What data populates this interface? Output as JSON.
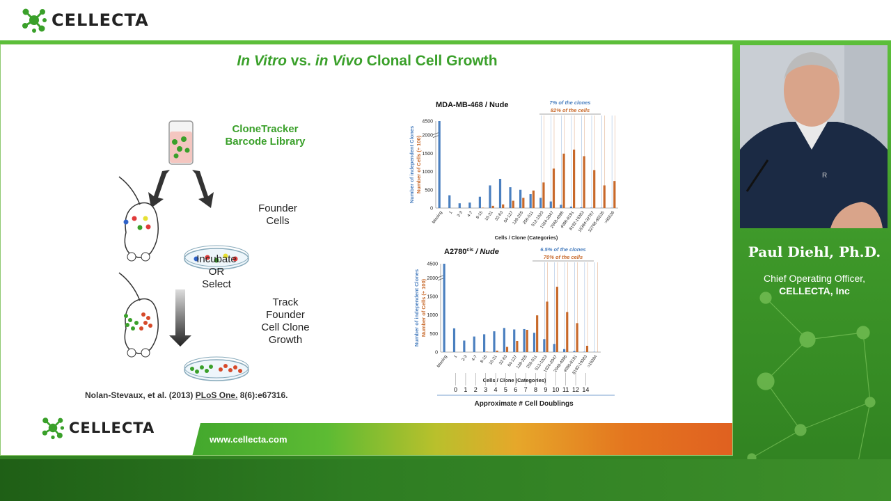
{
  "brand": {
    "name": "CELLECTA",
    "green": "#3aa02a",
    "orange": "#c8692a",
    "blue": "#4a7fbf"
  },
  "slide": {
    "title_italic_1": "In Vitro",
    "title_mid": " vs. ",
    "title_italic_2": "in Vivo",
    "title_rest": " Clonal Cell Growth",
    "library_label_line1": "CloneTracker",
    "library_label_line2": "Barcode Library",
    "founder_line1": "Founder",
    "founder_line2": "Cells",
    "incubate_line1": "Incubate",
    "incubate_line2": "OR",
    "incubate_line3": "Select",
    "track_line1": "Track",
    "track_line2": "Founder",
    "track_line3": "Cell Clone",
    "track_line4": "Growth",
    "citation_pre": "Nolan-Stevaux, et al. (2013) ",
    "citation_journal": "PLoS One.",
    "citation_post": " 8(6):e67316.",
    "footer_url": "www.cellecta.com",
    "footer_logo": "CELLECTA"
  },
  "speaker": {
    "name": "Paul Diehl, Ph.D.",
    "role": "Chief Operating Officer,",
    "company": "CELLECTA, Inc"
  },
  "chart_data": [
    {
      "type": "bar",
      "title": "MDA-MB-468 / Nude",
      "annotation_1": "7% of the clones",
      "annotation_2": "82% of the cells",
      "ylabel_1": "Number of independent Clones",
      "ylabel_2": "Number of Cells (÷ 100)",
      "xlabel": "Cells / Clone (Categories)",
      "yticks": [
        "0",
        "500",
        "1000",
        "1500",
        "2000",
        "4500"
      ],
      "categories": [
        "Missing",
        "1",
        "2-3",
        "4-7",
        "8-15",
        "16-31",
        "32-63",
        "64-127",
        "128-255",
        "256-511",
        "512-1023",
        "1024-2047",
        "2048-4095",
        "4096-8191",
        "8192-16383",
        "16384-32767",
        "32768-65535",
        ">65536"
      ],
      "series": [
        {
          "name": "Number of independent Clones",
          "values": [
            4600,
            350,
            130,
            150,
            310,
            620,
            800,
            570,
            500,
            380,
            280,
            180,
            90,
            40,
            20,
            10,
            5,
            5
          ]
        },
        {
          "name": "Number of Cells (÷ 100)",
          "values": [
            0,
            0,
            0,
            0,
            10,
            60,
            100,
            200,
            280,
            480,
            700,
            1080,
            1490,
            1600,
            1420,
            1040,
            620,
            740
          ]
        }
      ]
    },
    {
      "type": "bar",
      "title": "A2780",
      "title_sup": "cis",
      "title_suffix": " / Nude",
      "annotation_1": "6.5% of the clones",
      "annotation_2": "70% of the cells",
      "ylabel_1": "Number of independent Clones",
      "ylabel_2": "Number of Cells (÷ 100)",
      "xlabel": "Cells / Clone (Categories)",
      "yticks": [
        "0",
        "500",
        "1000",
        "1500",
        "2000",
        "4500"
      ],
      "categories": [
        "Missing",
        "1",
        "2-3",
        "4-7",
        "8-15",
        "16-31",
        "32-63",
        "64-127",
        "128-255",
        "256-511",
        "512-1023",
        "1024-2047",
        "2048-4095",
        "4096-8191",
        "8192-16383",
        ">16384"
      ],
      "series": [
        {
          "name": "Number of independent Clones",
          "values": [
            4600,
            640,
            310,
            420,
            480,
            560,
            650,
            610,
            620,
            520,
            350,
            220,
            80,
            30,
            10,
            5
          ]
        },
        {
          "name": "Number of Cells (÷ 100)",
          "values": [
            0,
            0,
            0,
            0,
            10,
            40,
            140,
            300,
            600,
            990,
            1360,
            1760,
            1080,
            780,
            170,
            0
          ]
        }
      ],
      "doublings_label": "Approximate # Cell Doublings",
      "doublings": [
        "0",
        "1",
        "2",
        "3",
        "4",
        "5",
        "6",
        "7",
        "8",
        "9",
        "10",
        "11",
        "12",
        "14"
      ]
    }
  ]
}
